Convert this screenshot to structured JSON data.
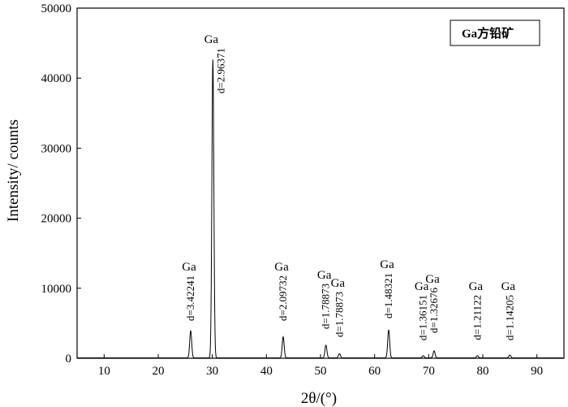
{
  "chart_data": {
    "type": "line",
    "xlabel": "2θ/(°)",
    "ylabel": "Intensity/ counts",
    "xlim": [
      5,
      95
    ],
    "ylim": [
      0,
      50000
    ],
    "x_ticks": [
      10,
      20,
      30,
      40,
      50,
      60,
      70,
      80,
      90
    ],
    "y_ticks": [
      0,
      10000,
      20000,
      30000,
      40000,
      50000
    ],
    "legend": "Ga方铅矿",
    "grid": false,
    "series": [
      {
        "peaks": [
          {
            "x": 26.0,
            "y": 3900
          },
          {
            "x": 30.1,
            "y": 42600
          },
          {
            "x": 43.1,
            "y": 3000
          },
          {
            "x": 51.0,
            "y": 1800
          },
          {
            "x": 53.5,
            "y": 600
          },
          {
            "x": 62.6,
            "y": 4000
          },
          {
            "x": 69.0,
            "y": 300
          },
          {
            "x": 71.0,
            "y": 1000
          },
          {
            "x": 79.0,
            "y": 300
          },
          {
            "x": 85.0,
            "y": 400
          }
        ]
      }
    ],
    "annotations": [
      {
        "phase": "Ga",
        "d": "d=3.42241",
        "x": 26.0
      },
      {
        "phase": "Ga",
        "d": "d=2.96371",
        "x": 30.1
      },
      {
        "phase": "Ga",
        "d": "d=2.09732",
        "x": 43.1
      },
      {
        "phase": "Ga",
        "d": "d=1.78873",
        "x": 51.0
      },
      {
        "phase": "Ga",
        "d": "d=1.78873",
        "x": 53.5
      },
      {
        "phase": "Ga",
        "d": "d=1.48321",
        "x": 62.6
      },
      {
        "phase": "Ga",
        "d": "d=1.36151",
        "x": 69.0
      },
      {
        "phase": "Ga",
        "d": "d=1.32676",
        "x": 71.0
      },
      {
        "phase": "Ga",
        "d": "d=1.21122",
        "x": 79.0
      },
      {
        "phase": "Ga",
        "d": "d=1.14205",
        "x": 85.0
      }
    ]
  }
}
